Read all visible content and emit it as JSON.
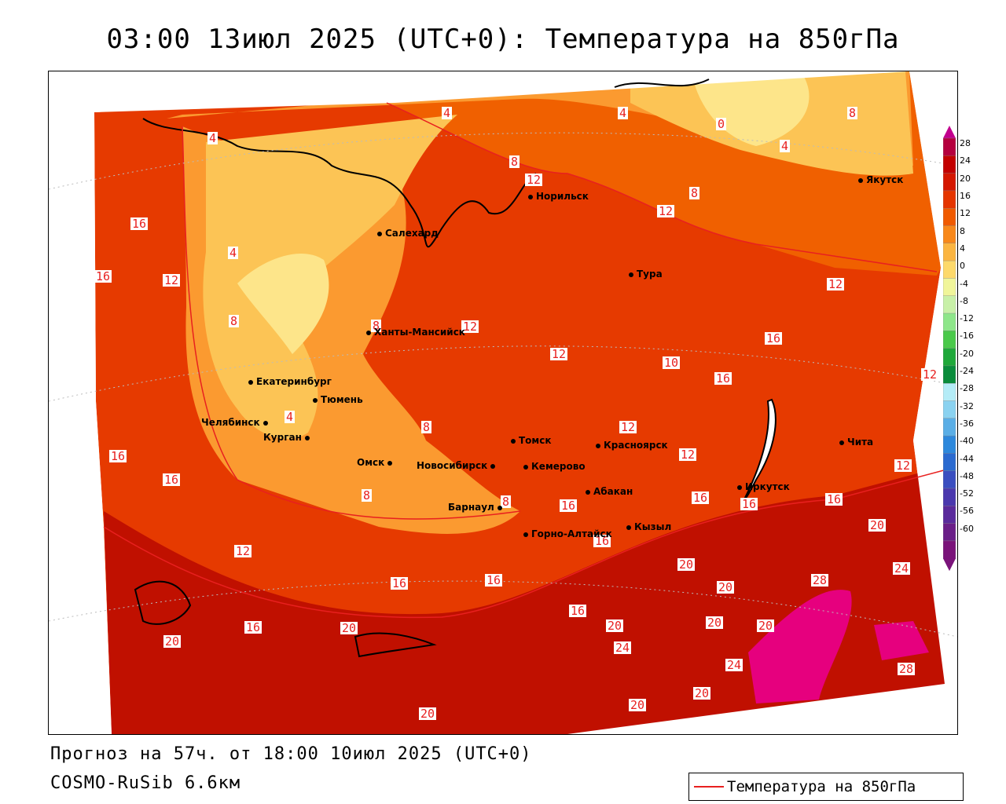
{
  "header": {
    "title": "03:00 13июл 2025 (UTC+0): Температура на 850гПа"
  },
  "footer": {
    "forecast": "Прогноз на 57ч. от 18:00 10июл 2025 (UTC+0)",
    "model": "COSMO-RuSib 6.6км"
  },
  "legend": {
    "label": "Температура на 850гПа",
    "line_color": "#e8201f"
  },
  "colors": {
    "t_28": "#e6007e",
    "t_24": "#b00000",
    "t_20": "#d11500",
    "t_16": "#e63a00",
    "t_12": "#f06000",
    "t_8": "#fb9a30",
    "t_4": "#fcc455",
    "t_0": "#fde58a",
    "isoline": "#e8201f"
  },
  "colorbar": {
    "ticks": [
      "28",
      "24",
      "20",
      "16",
      "12",
      "8",
      "4",
      "0",
      "-4",
      "-8",
      "-12",
      "-16",
      "-20",
      "-24",
      "-28",
      "-32",
      "-36",
      "-40",
      "-44",
      "-48",
      "-52",
      "-56",
      "-60"
    ],
    "colors": [
      "#b5003e",
      "#c30000",
      "#d51700",
      "#e53500",
      "#f05a00",
      "#f8881a",
      "#fbb541",
      "#fdd96b",
      "#f0f59a",
      "#c8f0a8",
      "#8ee68a",
      "#4ac94a",
      "#1fa83a",
      "#0a8c3b",
      "#b4ecf7",
      "#8ad2f0",
      "#5aaee6",
      "#2d88dc",
      "#2a6ad0",
      "#3a4ec0",
      "#4a38ae",
      "#5a2a9c",
      "#6a1e88",
      "#7a137a"
    ]
  },
  "cities": [
    {
      "name": "Салехард"
    },
    {
      "name": "Норильск"
    },
    {
      "name": "Якутск"
    },
    {
      "name": "Тура"
    },
    {
      "name": "Ханты-Мансийск"
    },
    {
      "name": "Екатеринбург"
    },
    {
      "name": "Тюмень"
    },
    {
      "name": "Челябинск"
    },
    {
      "name": "Курган"
    },
    {
      "name": "Омск"
    },
    {
      "name": "Новосибирск"
    },
    {
      "name": "Томск"
    },
    {
      "name": "Кемерово"
    },
    {
      "name": "Красноярск"
    },
    {
      "name": "Барнаул"
    },
    {
      "name": "Абакан"
    },
    {
      "name": "Горно-Алтайск"
    },
    {
      "name": "Кызыл"
    },
    {
      "name": "Иркутск"
    },
    {
      "name": "Чита"
    }
  ],
  "isoline_labels": [
    "4",
    "4",
    "4",
    "0",
    "4",
    "8",
    "8",
    "12",
    "8",
    "12",
    "16",
    "16",
    "12",
    "8",
    "8",
    "12",
    "12",
    "12",
    "16",
    "10",
    "16",
    "12",
    "4",
    "8",
    "12",
    "16",
    "12",
    "16",
    "16",
    "16",
    "12",
    "16",
    "16",
    "20",
    "20",
    "24",
    "12",
    "16",
    "16",
    "20",
    "20",
    "28",
    "16",
    "20",
    "20",
    "20",
    "20",
    "20",
    "24",
    "28",
    "20",
    "20",
    "20",
    "20",
    "12",
    "12",
    "16"
  ]
}
